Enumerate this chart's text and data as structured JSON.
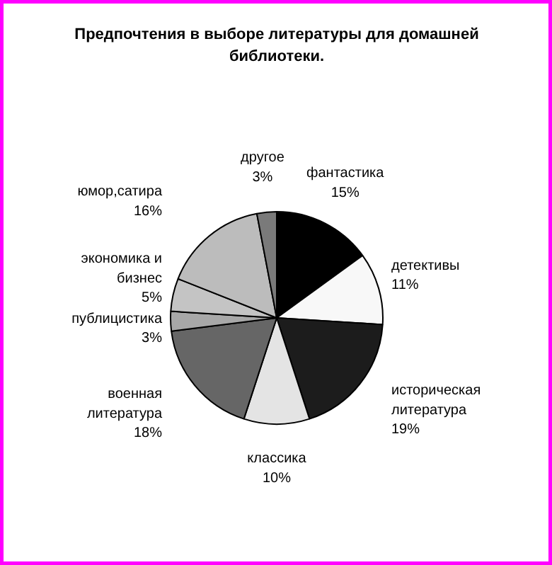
{
  "chart_data": {
    "type": "pie",
    "title": "Предпочтения в выборе литературы для домашней\nбиблиотеки.",
    "categories": [
      "фантастика",
      "детективы",
      "историческая\nлитература",
      "классика",
      "военная\nлитература",
      "публицистика",
      "экономика и\nбизнес",
      "юмор,сатира",
      "другое"
    ],
    "values": [
      15,
      11,
      19,
      10,
      18,
      3,
      5,
      16,
      3
    ],
    "colors": [
      "#000000",
      "#f8f8f8",
      "#1c1c1c",
      "#e4e4e4",
      "#666666",
      "#a8a8a8",
      "#c4c4c4",
      "#bcbcbc",
      "#7a7a7a"
    ],
    "value_labels": [
      "15%",
      "11%",
      "19%",
      "10%",
      "18%",
      "3%",
      "5%",
      "16%",
      "3%"
    ],
    "legend": false
  }
}
